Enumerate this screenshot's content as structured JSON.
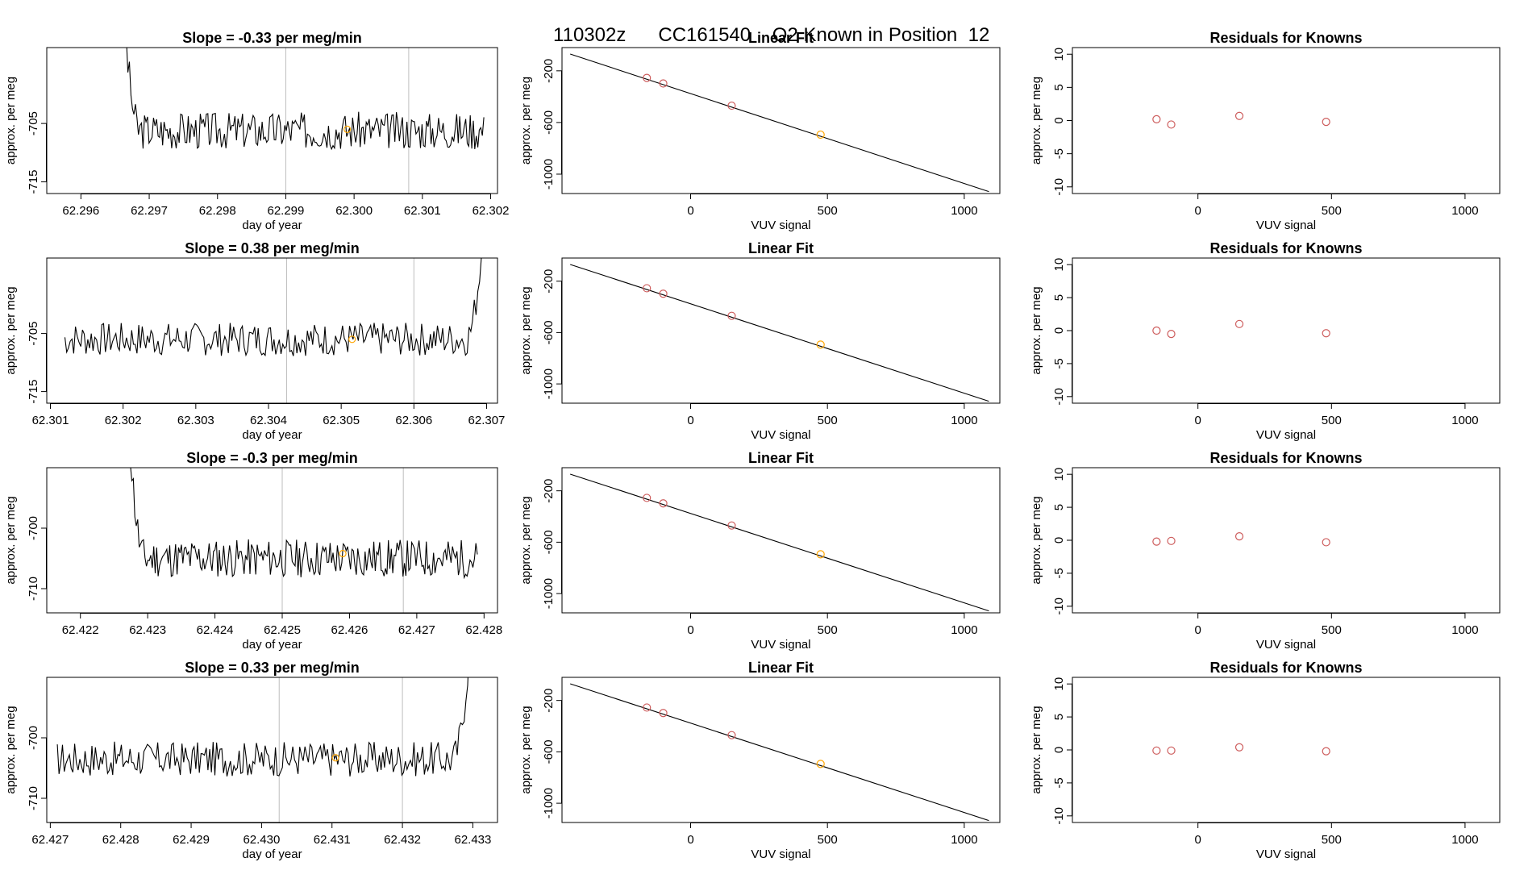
{
  "figure_title": {
    "date": "110302z",
    "cylinder": "CC161540",
    "text": "O2 Known in Position  12"
  },
  "colors": {
    "trace": "#000000",
    "marker": "#ffa500",
    "known_points": "#cd5c5c",
    "vlines": "#bebebe",
    "fit_line": "#000000"
  },
  "chart_data": [
    {
      "type": "line",
      "row": 0,
      "title": "Slope =  -0.33  per meg/min",
      "xlabel": "day of year",
      "ylabel": "approx. per meg",
      "xlim": [
        62.2955,
        62.3021
      ],
      "ylim": [
        -717,
        -692
      ],
      "xticks": [
        "62.296",
        "62.297",
        "62.298",
        "62.299",
        "62.300",
        "62.301",
        "62.302"
      ],
      "xtick_values": [
        62.296,
        62.297,
        62.298,
        62.299,
        62.3,
        62.301,
        62.302
      ],
      "yticks": [
        "-705",
        "-715"
      ],
      "ytick_values": [
        -705,
        -715
      ],
      "vlines": [
        62.299,
        62.3008
      ],
      "trace_start": 62.2966,
      "trace_end": 62.3019,
      "trace_base": -706.2,
      "trace_amp": 2.0,
      "spike": "start",
      "marker": {
        "x": 62.2999,
        "y": -706.0
      },
      "seed": 3
    },
    {
      "type": "scatter",
      "row": 0,
      "title": "Linear Fit",
      "xlabel": "VUV signal",
      "ylabel": "approx. per meg",
      "xlim": [
        -470,
        1130
      ],
      "ylim": [
        -1150,
        -20
      ],
      "xticks": [
        "0",
        "500",
        "1000"
      ],
      "xtick_values": [
        0,
        500,
        1000
      ],
      "yticks": [
        "-200",
        "-600",
        "-1000"
      ],
      "ytick_values": [
        -200,
        -600,
        -1000
      ],
      "line": {
        "x": [
          -440,
          1090
        ],
        "y": [
          -70,
          -1135
        ]
      },
      "points": [
        {
          "x": -160,
          "y": -255,
          "known": true
        },
        {
          "x": -100,
          "y": -298,
          "known": true
        },
        {
          "x": 150,
          "y": -470,
          "known": true
        },
        {
          "x": 475,
          "y": -694,
          "known": false
        }
      ]
    },
    {
      "type": "scatter",
      "row": 0,
      "title": "Residuals for Knowns",
      "xlabel": "VUV signal",
      "ylabel": "approx. per meg",
      "xlim": [
        -470,
        1130
      ],
      "ylim": [
        -11,
        11
      ],
      "xticks": [
        "0",
        "500",
        "1000"
      ],
      "xtick_values": [
        0,
        500,
        1000
      ],
      "yticks": [
        "-10",
        "-5",
        "0",
        "5",
        "10"
      ],
      "ytick_values": [
        -10,
        -5,
        0,
        5,
        10
      ],
      "points": [
        {
          "x": -155,
          "y": 0.2
        },
        {
          "x": -100,
          "y": -0.6
        },
        {
          "x": 155,
          "y": 0.7
        },
        {
          "x": 480,
          "y": -0.2
        }
      ]
    },
    {
      "type": "line",
      "row": 1,
      "title": "Slope =  0.38  per meg/min",
      "xlabel": "day of year",
      "ylabel": "approx. per meg",
      "xlim": [
        62.30095,
        62.30715
      ],
      "ylim": [
        -717,
        -692
      ],
      "xticks": [
        "62.301",
        "62.302",
        "62.303",
        "62.304",
        "62.305",
        "62.306",
        "62.307"
      ],
      "xtick_values": [
        62.301,
        62.302,
        62.303,
        62.304,
        62.305,
        62.306,
        62.307
      ],
      "yticks": [
        "-705",
        "-715"
      ],
      "ytick_values": [
        -705,
        -715
      ],
      "vlines": [
        62.30425,
        62.306
      ],
      "trace_start": 62.3012,
      "trace_end": 62.307,
      "trace_base": -706.0,
      "trace_amp": 1.8,
      "spike": "end",
      "marker": {
        "x": 62.30515,
        "y": -706.0
      },
      "seed": 7
    },
    {
      "type": "scatter",
      "row": 1,
      "title": "Linear Fit",
      "xlabel": "VUV signal",
      "ylabel": "approx. per meg",
      "xlim": [
        -470,
        1130
      ],
      "ylim": [
        -1150,
        -20
      ],
      "xticks": [
        "0",
        "500",
        "1000"
      ],
      "xtick_values": [
        0,
        500,
        1000
      ],
      "yticks": [
        "-200",
        "-600",
        "-1000"
      ],
      "ytick_values": [
        -200,
        -600,
        -1000
      ],
      "line": {
        "x": [
          -440,
          1090
        ],
        "y": [
          -70,
          -1135
        ]
      },
      "points": [
        {
          "x": -160,
          "y": -255,
          "known": true
        },
        {
          "x": -100,
          "y": -298,
          "known": true
        },
        {
          "x": 150,
          "y": -470,
          "known": true
        },
        {
          "x": 475,
          "y": -694,
          "known": false
        }
      ]
    },
    {
      "type": "scatter",
      "row": 1,
      "title": "Residuals for Knowns",
      "xlabel": "VUV signal",
      "ylabel": "approx. per meg",
      "xlim": [
        -470,
        1130
      ],
      "ylim": [
        -11,
        11
      ],
      "xticks": [
        "0",
        "500",
        "1000"
      ],
      "xtick_values": [
        0,
        500,
        1000
      ],
      "yticks": [
        "-10",
        "-5",
        "0",
        "5",
        "10"
      ],
      "ytick_values": [
        -10,
        -5,
        0,
        5,
        10
      ],
      "points": [
        {
          "x": -155,
          "y": 0.0
        },
        {
          "x": -100,
          "y": -0.5
        },
        {
          "x": 155,
          "y": 1.0
        },
        {
          "x": 480,
          "y": -0.4
        }
      ]
    },
    {
      "type": "line",
      "row": 2,
      "title": "Slope =  -0.3  per meg/min",
      "xlabel": "day of year",
      "ylabel": "approx. per meg",
      "xlim": [
        62.4215,
        62.4282
      ],
      "ylim": [
        -714,
        -690
      ],
      "xticks": [
        "62.422",
        "62.423",
        "62.424",
        "62.425",
        "62.426",
        "62.427",
        "62.428"
      ],
      "xtick_values": [
        62.422,
        62.423,
        62.424,
        62.425,
        62.426,
        62.427,
        62.428
      ],
      "yticks": [
        "-700",
        "-710"
      ],
      "ytick_values": [
        -700,
        -710
      ],
      "vlines": [
        62.425,
        62.4268
      ],
      "trace_start": 62.4227,
      "trace_end": 62.4279,
      "trace_base": -705.0,
      "trace_amp": 2.0,
      "spike": "start",
      "marker": {
        "x": 62.4259,
        "y": -704.2
      },
      "seed": 11
    },
    {
      "type": "scatter",
      "row": 2,
      "title": "Linear Fit",
      "xlabel": "VUV signal",
      "ylabel": "approx. per meg",
      "xlim": [
        -470,
        1130
      ],
      "ylim": [
        -1150,
        -20
      ],
      "xticks": [
        "0",
        "500",
        "1000"
      ],
      "xtick_values": [
        0,
        500,
        1000
      ],
      "yticks": [
        "-200",
        "-600",
        "-1000"
      ],
      "ytick_values": [
        -200,
        -600,
        -1000
      ],
      "line": {
        "x": [
          -440,
          1090
        ],
        "y": [
          -70,
          -1135
        ]
      },
      "points": [
        {
          "x": -160,
          "y": -255,
          "known": true
        },
        {
          "x": -100,
          "y": -298,
          "known": true
        },
        {
          "x": 150,
          "y": -470,
          "known": true
        },
        {
          "x": 475,
          "y": -694,
          "known": false
        }
      ]
    },
    {
      "type": "scatter",
      "row": 2,
      "title": "Residuals for Knowns",
      "xlabel": "VUV signal",
      "ylabel": "approx. per meg",
      "xlim": [
        -470,
        1130
      ],
      "ylim": [
        -11,
        11
      ],
      "xticks": [
        "0",
        "500",
        "1000"
      ],
      "xtick_values": [
        0,
        500,
        1000
      ],
      "yticks": [
        "-10",
        "-5",
        "0",
        "5",
        "10"
      ],
      "ytick_values": [
        -10,
        -5,
        0,
        5,
        10
      ],
      "points": [
        {
          "x": -155,
          "y": -0.2
        },
        {
          "x": -100,
          "y": -0.1
        },
        {
          "x": 155,
          "y": 0.6
        },
        {
          "x": 480,
          "y": -0.3
        }
      ]
    },
    {
      "type": "line",
      "row": 3,
      "title": "Slope =  0.33  per meg/min",
      "xlabel": "day of year",
      "ylabel": "approx. per meg",
      "xlim": [
        62.42695,
        62.43335
      ],
      "ylim": [
        -714,
        -690
      ],
      "xticks": [
        "62.427",
        "62.428",
        "62.429",
        "62.430",
        "62.431",
        "62.432",
        "62.433"
      ],
      "xtick_values": [
        62.427,
        62.428,
        62.429,
        62.43,
        62.431,
        62.432,
        62.433
      ],
      "yticks": [
        "-700",
        "-710"
      ],
      "ytick_values": [
        -700,
        -710
      ],
      "vlines": [
        62.43025,
        62.432
      ],
      "trace_start": 62.4271,
      "trace_end": 62.433,
      "trace_base": -703.5,
      "trace_amp": 1.8,
      "spike": "end",
      "marker": {
        "x": 62.43105,
        "y": -703.3
      },
      "seed": 17
    },
    {
      "type": "scatter",
      "row": 3,
      "title": "Linear Fit",
      "xlabel": "VUV signal",
      "ylabel": "approx. per meg",
      "xlim": [
        -470,
        1130
      ],
      "ylim": [
        -1150,
        -20
      ],
      "xticks": [
        "0",
        "500",
        "1000"
      ],
      "xtick_values": [
        0,
        500,
        1000
      ],
      "yticks": [
        "-200",
        "-600",
        "-1000"
      ],
      "ytick_values": [
        -200,
        -600,
        -1000
      ],
      "line": {
        "x": [
          -440,
          1090
        ],
        "y": [
          -70,
          -1135
        ]
      },
      "points": [
        {
          "x": -160,
          "y": -255,
          "known": true
        },
        {
          "x": -100,
          "y": -298,
          "known": true
        },
        {
          "x": 150,
          "y": -470,
          "known": true
        },
        {
          "x": 475,
          "y": -694,
          "known": false
        }
      ]
    },
    {
      "type": "scatter",
      "row": 3,
      "title": "Residuals for Knowns",
      "xlabel": "VUV signal",
      "ylabel": "approx. per meg",
      "xlim": [
        -470,
        1130
      ],
      "ylim": [
        -11,
        11
      ],
      "xticks": [
        "0",
        "500",
        "1000"
      ],
      "xtick_values": [
        0,
        500,
        1000
      ],
      "yticks": [
        "-10",
        "-5",
        "0",
        "5",
        "10"
      ],
      "ytick_values": [
        -10,
        -5,
        0,
        5,
        10
      ],
      "points": [
        {
          "x": -155,
          "y": -0.1
        },
        {
          "x": -100,
          "y": -0.1
        },
        {
          "x": 155,
          "y": 0.4
        },
        {
          "x": 480,
          "y": -0.2
        }
      ]
    }
  ]
}
